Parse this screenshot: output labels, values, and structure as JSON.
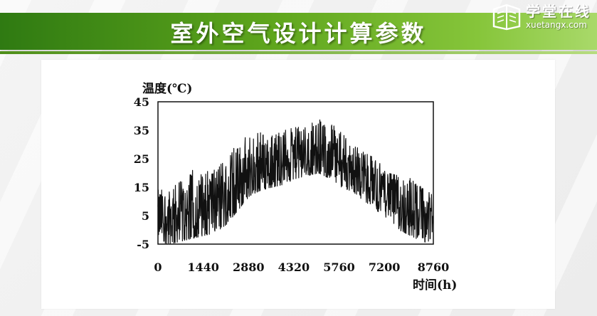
{
  "header": {
    "title": "室外空气设计计算参数",
    "logo_cn": "学堂在线",
    "logo_en": "xuetangx.com",
    "accent_color": "#5ea51c"
  },
  "chart_data": {
    "type": "line",
    "title": "",
    "ylabel": "温度(℃)",
    "xlabel": "时间(h)",
    "xlim": [
      0,
      8760
    ],
    "ylim": [
      -5,
      45
    ],
    "x_ticks": [
      "0",
      "1440",
      "2880",
      "4320",
      "5760",
      "7200",
      "8760"
    ],
    "y_ticks": [
      "45",
      "35",
      "25",
      "15",
      "5",
      "-5"
    ],
    "grid": false,
    "legend": "none",
    "series": [
      {
        "x": [
          0,
          365,
          730,
          1095,
          1460,
          1825,
          2190,
          2555,
          2920,
          3285,
          3650,
          4015,
          4380,
          4745,
          5110,
          5475,
          5840,
          6205,
          6570,
          6935,
          7300,
          7665,
          8030,
          8395,
          8760
        ],
        "mean": [
          5,
          4,
          5,
          7,
          8,
          10,
          13,
          17,
          20,
          23,
          24,
          25,
          26,
          27,
          27,
          26,
          24,
          21,
          19,
          16,
          13,
          9,
          7,
          5,
          4
        ],
        "max": [
          14,
          14,
          18,
          21,
          20,
          22,
          27,
          30,
          37,
          35,
          33,
          35,
          36,
          37,
          39,
          38,
          34,
          30,
          27,
          25,
          20,
          19,
          19,
          15,
          12
        ],
        "min": [
          -4,
          -5,
          -4,
          -3,
          -2,
          -1,
          2,
          7,
          12,
          14,
          15,
          16,
          18,
          19,
          20,
          18,
          15,
          13,
          10,
          7,
          4,
          0,
          -2,
          -4,
          -5
        ]
      }
    ]
  }
}
